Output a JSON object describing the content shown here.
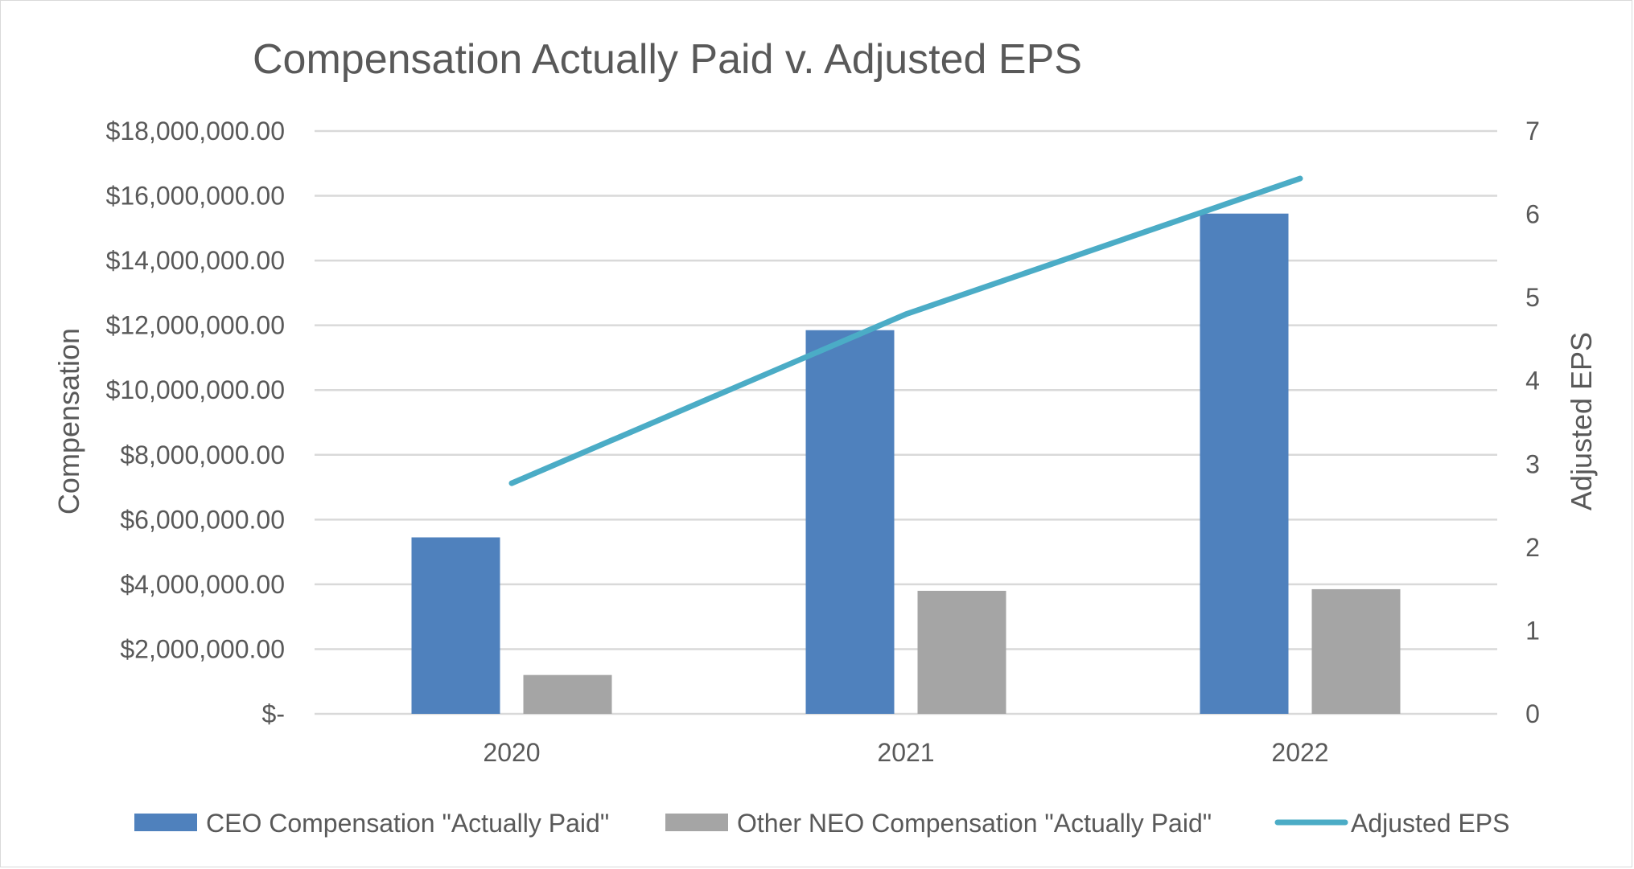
{
  "chart_data": {
    "type": "bar",
    "title": "Compensation Actually Paid v. Adjusted EPS",
    "categories": [
      "2020",
      "2021",
      "2022"
    ],
    "ylabel": "Compensation",
    "y2label": "Adjusted EPS",
    "ylim": [
      0,
      18000000
    ],
    "y2lim": [
      0,
      7
    ],
    "yticks": [
      0,
      2000000,
      4000000,
      6000000,
      8000000,
      10000000,
      12000000,
      14000000,
      16000000,
      18000000
    ],
    "ytick_labels": [
      "$-",
      "$2,000,000.00",
      "$4,000,000.00",
      "$6,000,000.00",
      "$8,000,000.00",
      "$10,000,000.00",
      "$12,000,000.00",
      "$14,000,000.00",
      "$16,000,000.00",
      "$18,000,000.00"
    ],
    "y2ticks": [
      0,
      1,
      2,
      3,
      4,
      5,
      6,
      7
    ],
    "y2tick_labels": [
      "0",
      "1",
      "2",
      "3",
      "4",
      "5",
      "6",
      "7"
    ],
    "grid": true,
    "legend_position": "bottom",
    "series": [
      {
        "name": "CEO Compensation \"Actually Paid\"",
        "type": "bar",
        "axis": "left",
        "color": "#4f81bd",
        "values": [
          5450000,
          11850000,
          15450000
        ]
      },
      {
        "name": "Other NEO Compensation \"Actually Paid\"",
        "type": "bar",
        "axis": "left",
        "color": "#a5a5a5",
        "values": [
          1200000,
          3800000,
          3850000
        ]
      },
      {
        "name": "Adjusted EPS",
        "type": "line",
        "axis": "right",
        "color": "#4bacc6",
        "values": [
          2.77,
          4.8,
          6.43
        ]
      }
    ]
  }
}
